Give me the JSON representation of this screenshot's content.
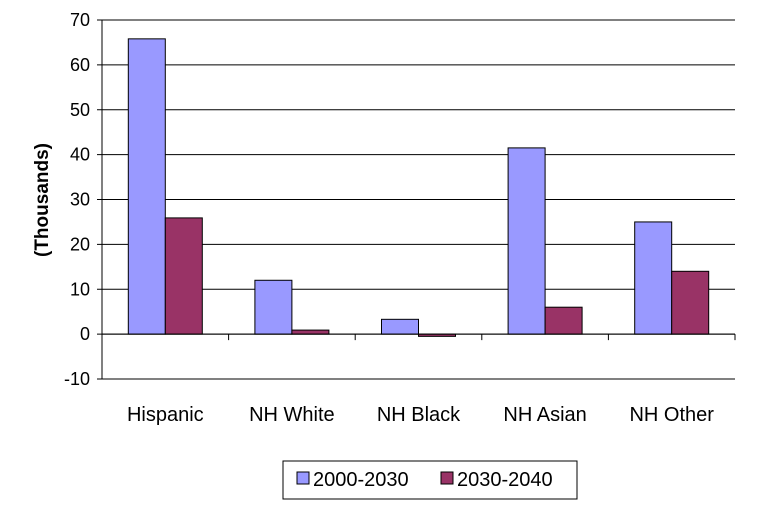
{
  "chart_data": {
    "type": "bar",
    "title": "",
    "xlabel": "",
    "ylabel": "(Thousands)",
    "ylim": [
      -10,
      70
    ],
    "yticks": [
      -10,
      0,
      10,
      20,
      30,
      40,
      50,
      60,
      70
    ],
    "grid": true,
    "legend_position": "bottom",
    "categories": [
      "Hispanic",
      "NH White",
      "NH Black",
      "NH Asian",
      "NH Other"
    ],
    "series": [
      {
        "name": "2000-2030",
        "color": "#9999ff",
        "values": [
          65.8,
          12,
          3.3,
          41.5,
          25
        ]
      },
      {
        "name": "2030-2040",
        "color": "#993366",
        "values": [
          25.9,
          0.9,
          -0.5,
          6,
          14
        ]
      }
    ]
  }
}
